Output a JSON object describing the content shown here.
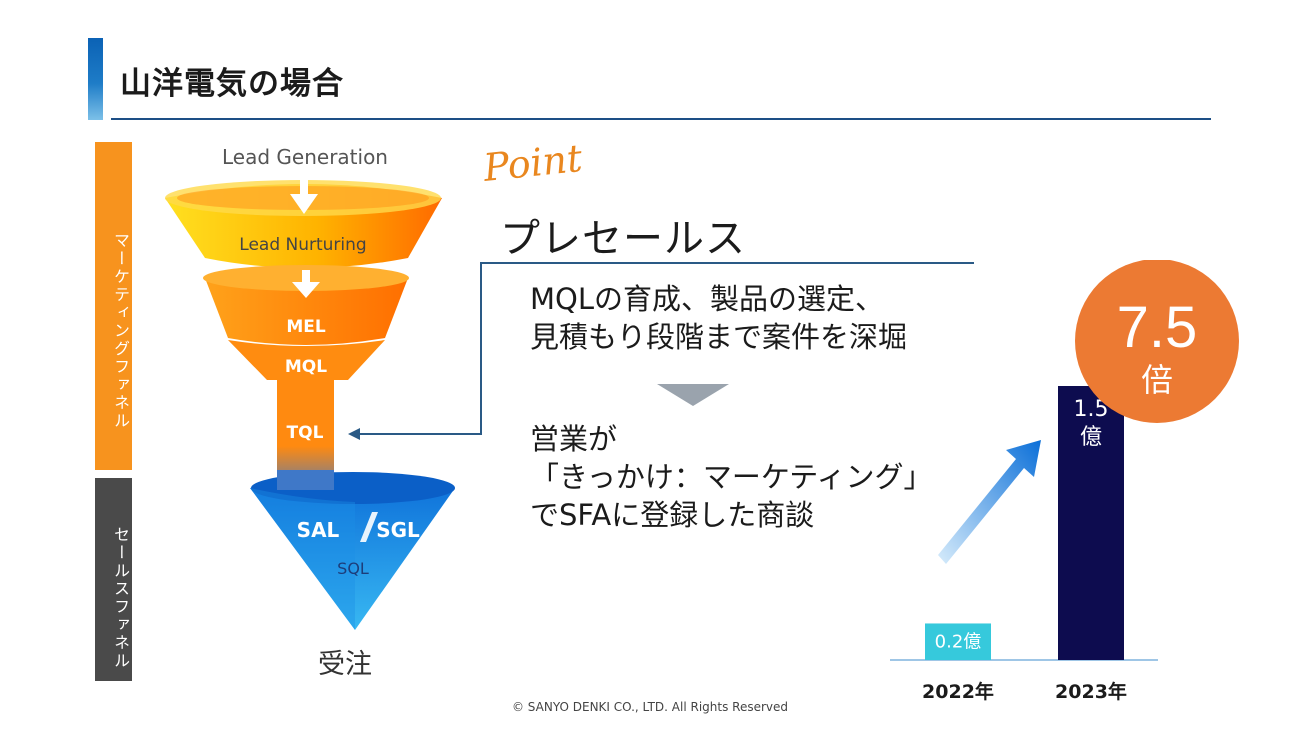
{
  "header": {
    "title": "山洋電気の場合"
  },
  "side_labels": {
    "marketing": "マーケティングファネル",
    "sales": "セールスファネル"
  },
  "funnel": {
    "top": "Lead Generation",
    "nurturing": "Lead Nurturing",
    "mel": "MEL",
    "mql": "MQL",
    "tql": "TQL",
    "sal": "SAL",
    "sgl": "SGL",
    "sql": "SQL",
    "order": "受注"
  },
  "point": {
    "script_label": "Point",
    "heading": "プレセールス",
    "text1_line1": "MQLの育成、製品の選定、",
    "text1_line2": "見積もり段階まで案件を深堀",
    "text2_line1": "営業が",
    "text2_line2": "「きっかけ：マーケティング」",
    "text2_line3": "でSFAに登録した商談"
  },
  "badge": {
    "value": "7.5",
    "unit": "倍"
  },
  "colors": {
    "accent_orange": "#ec7a33",
    "navy": "#0d0c4f",
    "cyan": "#36c9dc",
    "funnel_blue": "#1e88e5"
  },
  "chart_data": {
    "type": "bar",
    "categories": [
      "2022年",
      "2023年"
    ],
    "values": [
      0.2,
      1.5
    ],
    "data_labels": [
      "0.2億",
      "1.5億"
    ],
    "ylim": [
      0,
      1.5
    ],
    "grid": false
  },
  "footer": {
    "copyright": "© SANYO DENKI CO., LTD. All Rights Reserved"
  }
}
